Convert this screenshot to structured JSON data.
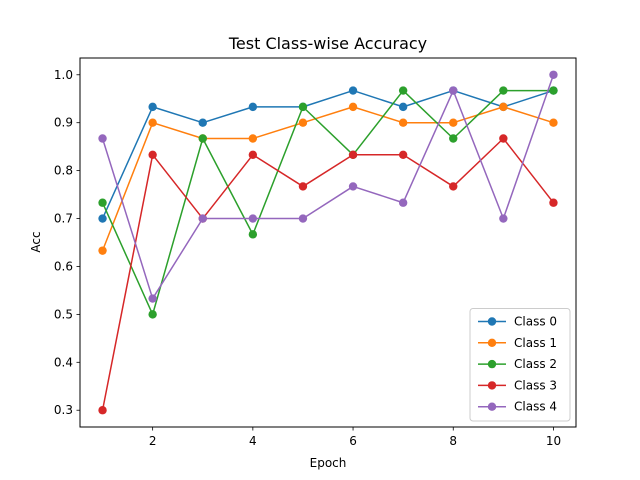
{
  "chart_data": {
    "type": "line",
    "title": "Test Class-wise Accuracy",
    "xlabel": "Epoch",
    "ylabel": "Acc",
    "x": [
      1,
      2,
      3,
      4,
      5,
      6,
      7,
      8,
      9,
      10
    ],
    "xticks": [
      "2",
      "4",
      "6",
      "8",
      "10"
    ],
    "yticks": [
      "0.3",
      "0.4",
      "0.5",
      "0.6",
      "0.7",
      "0.8",
      "0.9",
      "1.0"
    ],
    "xlim": [
      0.55,
      10.45
    ],
    "ylim": [
      0.265,
      1.035
    ],
    "grid": false,
    "legend": "lower-right",
    "series": [
      {
        "name": "Class 0",
        "color": "#1f77b4",
        "values": [
          0.7,
          0.933,
          0.9,
          0.933,
          0.933,
          0.967,
          0.933,
          0.967,
          0.933,
          0.967
        ]
      },
      {
        "name": "Class 1",
        "color": "#ff7f0e",
        "values": [
          0.633,
          0.9,
          0.867,
          0.867,
          0.9,
          0.933,
          0.9,
          0.9,
          0.933,
          0.9
        ]
      },
      {
        "name": "Class 2",
        "color": "#2ca02c",
        "values": [
          0.733,
          0.5,
          0.867,
          0.667,
          0.933,
          0.833,
          0.967,
          0.867,
          0.967,
          0.967
        ]
      },
      {
        "name": "Class 3",
        "color": "#d62728",
        "values": [
          0.3,
          0.833,
          0.7,
          0.833,
          0.767,
          0.833,
          0.833,
          0.767,
          0.867,
          0.733
        ]
      },
      {
        "name": "Class 4",
        "color": "#9467bd",
        "values": [
          0.867,
          0.533,
          0.7,
          0.7,
          0.7,
          0.767,
          0.733,
          0.967,
          0.7,
          1.0
        ]
      }
    ]
  }
}
